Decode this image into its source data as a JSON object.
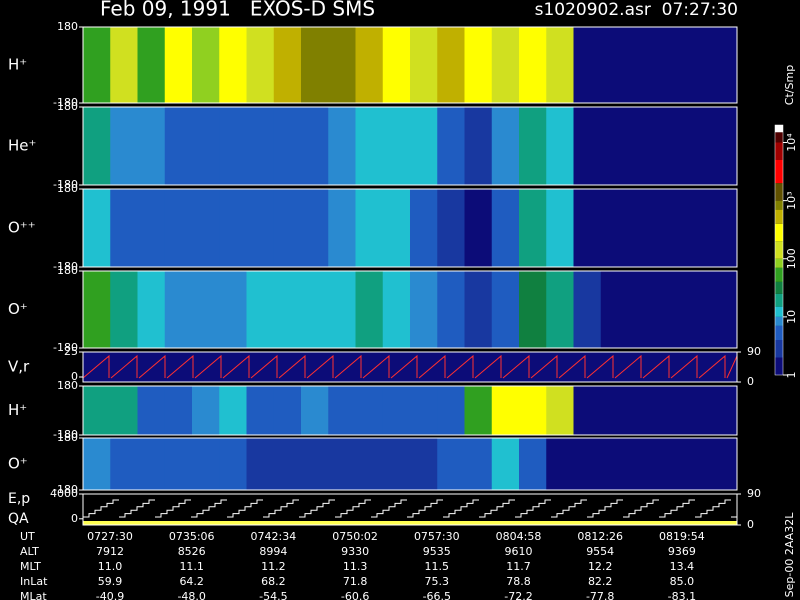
{
  "chart_data": {
    "title": "Feb 09, 1991   EXOS-D SMS",
    "subtitle": "s1020902.asr  07:27:30",
    "panels": [
      {
        "type": "spectrogram",
        "label": "H⁺",
        "ylim": [
          -180,
          180
        ],
        "yticks": [
          180,
          -180
        ],
        "columns": [
          60,
          150,
          60,
          200,
          80,
          300,
          150,
          400,
          700,
          800,
          500,
          300,
          120,
          600,
          200,
          150,
          300,
          100,
          1.2,
          1,
          1,
          1,
          1,
          1
        ]
      },
      {
        "type": "spectrogram",
        "label": "He⁺",
        "ylim": [
          -180,
          180
        ],
        "yticks": [
          180,
          -180
        ],
        "columns": [
          15,
          8,
          8,
          6,
          5,
          5,
          5,
          6,
          6,
          7,
          12,
          14,
          10,
          5,
          2,
          8,
          20,
          12,
          1.5,
          1,
          1,
          1,
          1,
          1
        ]
      },
      {
        "type": "spectrogram",
        "label": "O⁺⁺",
        "ylim": [
          -180,
          180
        ],
        "yticks": [
          180,
          -180
        ],
        "columns": [
          12,
          6,
          6,
          5,
          5,
          5,
          5,
          4,
          5,
          7,
          10,
          10,
          6,
          3,
          1.5,
          4,
          15,
          10,
          1,
          1,
          1,
          1,
          1,
          1
        ]
      },
      {
        "type": "spectrogram",
        "label": "O⁺",
        "ylim": [
          -180,
          180
        ],
        "yticks": [
          180,
          -180
        ],
        "columns": [
          40,
          20,
          10,
          8,
          7,
          8,
          10,
          10,
          12,
          14,
          15,
          12,
          8,
          4,
          2,
          6,
          30,
          20,
          2,
          1,
          1,
          1,
          1,
          1
        ]
      },
      {
        "type": "trace",
        "label": "V,r",
        "color": "#ff3030",
        "ylim": [
          -5,
          25
        ],
        "yticks": [
          25,
          0
        ],
        "y2lim": [
          0,
          90
        ],
        "y2ticks": [
          90,
          0
        ]
      },
      {
        "type": "spectrogram",
        "label": "H⁺",
        "ylim": [
          -180,
          180
        ],
        "yticks": [
          180,
          -180
        ],
        "columns": [
          20,
          15,
          6,
          5,
          8,
          10,
          6,
          5,
          8,
          6,
          6,
          5,
          5,
          5,
          60,
          300,
          200,
          100,
          1,
          1,
          1,
          1,
          1,
          1
        ]
      },
      {
        "type": "spectrogram",
        "label": "O⁺",
        "ylim": [
          -180,
          180
        ],
        "yticks": [
          180,
          -180
        ],
        "columns": [
          8,
          6,
          5,
          5,
          5,
          5,
          3,
          2,
          2,
          2,
          2,
          3,
          3,
          4,
          4,
          12,
          4,
          1,
          1,
          1,
          1,
          1,
          1,
          1
        ]
      },
      {
        "type": "trace",
        "label": "E,p",
        "label2": "QA",
        "color": "#ffffff",
        "qa_color": "#ffff50",
        "ylim": [
          -1000,
          4000
        ],
        "yticks": [
          4000,
          0
        ],
        "y2lim": [
          0,
          90
        ],
        "y2ticks": [
          90,
          0
        ]
      }
    ],
    "colorbar": {
      "unit": "Ct/Smp",
      "scale": "log",
      "lim": [
        1,
        20000
      ],
      "stops": [
        {
          "value": 1,
          "color": "#0c0c78"
        },
        {
          "value": 2,
          "color": "#1838a0"
        },
        {
          "value": 4,
          "color": "#1f5cc0"
        },
        {
          "value": 7,
          "color": "#2a8ad0"
        },
        {
          "value": 10,
          "color": "#20c0d0"
        },
        {
          "value": 15,
          "color": "#10a080"
        },
        {
          "value": 25,
          "color": "#108040"
        },
        {
          "value": 40,
          "color": "#30a020"
        },
        {
          "value": 70,
          "color": "#90d020"
        },
        {
          "value": 100,
          "color": "#d0e020"
        },
        {
          "value": 200,
          "color": "#ffff00"
        },
        {
          "value": 400,
          "color": "#c0b000"
        },
        {
          "value": 700,
          "color": "#808000"
        },
        {
          "value": 1000,
          "color": "#605000"
        },
        {
          "value": 2000,
          "color": "#ff0000"
        },
        {
          "value": 5000,
          "color": "#a00000"
        },
        {
          "value": 10000,
          "color": "#500000"
        },
        {
          "value": 15000,
          "color": "#ffffff"
        }
      ],
      "ticks": [
        {
          "value": 1,
          "label": "1"
        },
        {
          "value": 10,
          "label": "10"
        },
        {
          "value": 100,
          "label": "100"
        },
        {
          "value": 1000,
          "label": "10³"
        },
        {
          "value": 10000,
          "label": "10⁴"
        }
      ]
    }
  },
  "table": {
    "rows": [
      [
        "UT",
        "0727:30",
        "0735:06",
        "0742:34",
        "0750:02",
        "0757:30",
        "0804:58",
        "0812:26",
        "0819:54"
      ],
      [
        "ALT",
        "7912",
        "8526",
        "8994",
        "9330",
        "9535",
        "9610",
        "9554",
        "9369"
      ],
      [
        "MLT",
        "11.0",
        "11.1",
        "11.2",
        "11.3",
        "11.5",
        "11.7",
        "12.2",
        "13.4"
      ],
      [
        "InLat",
        "59.9",
        "64.2",
        "68.2",
        "71.8",
        "75.3",
        "78.8",
        "82.2",
        "85.0"
      ],
      [
        "MLat",
        "-40.9",
        "-48.0",
        "-54.5",
        "-60.6",
        "-66.5",
        "-72.2",
        "-77.8",
        "-83.1"
      ]
    ]
  },
  "footer": "Sep-00 2AA32L"
}
